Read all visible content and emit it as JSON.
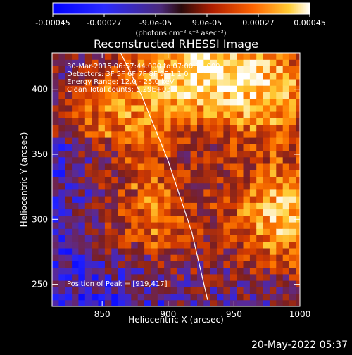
{
  "chart_data": {
    "type": "heatmap",
    "title": "Reconstructed RHESSI Image",
    "xlabel": "Heliocentric X (arcsec)",
    "ylabel": "Heliocentric Y (arcsec)",
    "xlim": [
      812,
      1000
    ],
    "ylim": [
      233,
      428
    ],
    "x_ticks": [
      850,
      900,
      950,
      1000
    ],
    "x_tick_labels": [
      "850",
      "900",
      "950",
      "1000"
    ],
    "y_ticks": [
      250,
      300,
      350,
      400
    ],
    "y_tick_labels": [
      "250",
      "300",
      "350",
      "400"
    ],
    "colorbar": {
      "range": [
        -0.00045,
        0.00045
      ],
      "ticks": [
        -0.00045,
        -0.00027,
        -9e-05,
        9e-05,
        0.00027,
        0.00045
      ],
      "tick_labels": [
        "-0.00045",
        "-0.00027",
        "-9.0e-05",
        "9.0e-05",
        "0.00027",
        "0.00045"
      ],
      "unit": "(photons cm⁻² s⁻¹ asec⁻²)",
      "colormap": [
        "#0000ff",
        "#2222ff",
        "#5d2a8f",
        "#7b1f1f",
        "#d43b00",
        "#ff7a00",
        "#ffd23a",
        "#ffffff"
      ]
    },
    "annotations": [
      "30-Mar-2015 06:57:44.000 to 07:00:36.000",
      "Detectors: 3F 5F 6F 7F 8F 9F 1 1 0",
      "Energy Range: 12.0 - 25.0 keV",
      "Clean     Total counts: 3.29E+03",
      "Position of Peak = [919,417]"
    ],
    "limb_curve": {
      "x": [
        864,
        880,
        900,
        918,
        930
      ],
      "y": [
        428,
        395,
        345,
        290,
        238
      ]
    },
    "bright_regions": [
      {
        "x": 919,
        "y": 417,
        "peak": 1.0
      },
      {
        "x": 985,
        "y": 300,
        "peak": 0.95
      },
      {
        "x": 975,
        "y": 395,
        "peak": 0.85
      },
      {
        "x": 880,
        "y": 300,
        "peak": 0.7
      },
      {
        "x": 860,
        "y": 380,
        "peak": 0.65
      }
    ]
  },
  "footer": {
    "timestamp": "20-May-2022 05:37"
  }
}
